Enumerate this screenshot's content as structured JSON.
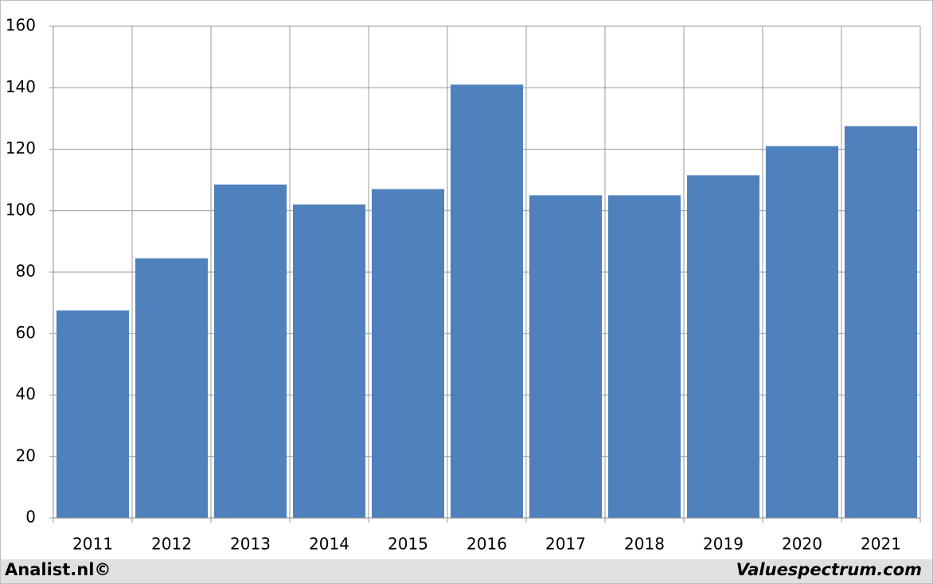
{
  "chart_data": {
    "type": "bar",
    "categories": [
      "2011",
      "2012",
      "2013",
      "2014",
      "2015",
      "2016",
      "2017",
      "2018",
      "2019",
      "2020",
      "2021"
    ],
    "values": [
      67.5,
      84.5,
      108.5,
      102,
      107,
      141,
      105,
      105,
      111.5,
      121,
      127.5
    ],
    "color": "#4f81bd",
    "ylim": [
      0,
      160
    ],
    "yticks": [
      0,
      20,
      40,
      60,
      80,
      100,
      120,
      140,
      160
    ],
    "grid": true
  },
  "footer": {
    "left": "Analist.nl©",
    "right": "Valuespectrum.com"
  }
}
